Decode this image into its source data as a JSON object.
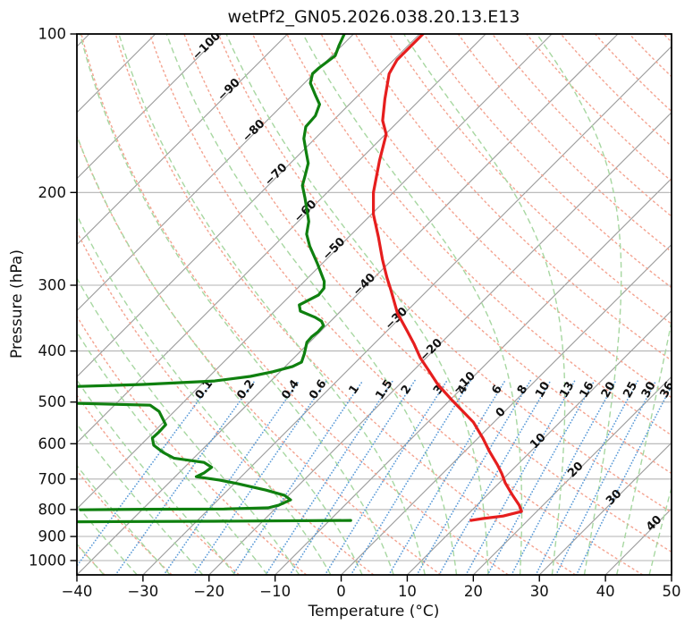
{
  "title": "wetPf2_GN05.2026.038.20.13.E13",
  "axes": {
    "xlabel": "Temperature (°C)",
    "ylabel": "Pressure (hPa)",
    "x_ticks": [
      -40,
      -30,
      -20,
      -10,
      0,
      10,
      20,
      30,
      40,
      50
    ],
    "y_ticks": [
      100,
      200,
      300,
      400,
      500,
      600,
      700,
      800,
      900,
      1000
    ],
    "x_range_c": [
      -40,
      50
    ],
    "p_top_hpa": 100,
    "p_bottom_hpa": 1064
  },
  "colors": {
    "temperature_line": "#e61e1e",
    "dewpoint_line": "#0f800f",
    "isotherm": "#9e9e9e",
    "pressure_grid": "#b3b3b3",
    "dry_adiabat": "#f4a390",
    "moist_adiabat": "#a7d7a1",
    "mixing_line": "#5b9bd8",
    "label_negative": "#2273c8",
    "label_zero": "#8a8a8a",
    "label_positive": "#c94040",
    "spine": "#000000",
    "text": "#111111"
  },
  "chart_data": {
    "type": "line",
    "variant": "skew-t-log-p",
    "title": "wetPf2_GN05.2026.038.20.13.E13",
    "xlabel": "Temperature (°C)",
    "ylabel": "Pressure (hPa)",
    "x_range_c": [
      -40,
      50
    ],
    "p_range_hpa": [
      100,
      1064
    ],
    "skew": "45deg-isotherms",
    "grid": true,
    "isotherm_step_c": 10,
    "isotherm_labels": [
      [
        -100,
        53
      ],
      [
        -90,
        102
      ],
      [
        -80,
        148
      ],
      [
        -70,
        197
      ],
      [
        -60,
        238
      ],
      [
        -50,
        280
      ],
      [
        -40,
        320
      ],
      [
        -30,
        358
      ],
      [
        -20,
        393
      ],
      [
        -10,
        430
      ],
      [
        0,
        463
      ],
      [
        10,
        495
      ],
      [
        20,
        527
      ],
      [
        30,
        558
      ],
      [
        40,
        587
      ]
    ],
    "dry_adiabats_theta_c": {
      "start": -40,
      "end": 200,
      "step": 10
    },
    "moist_adiabats_t0_c": {
      "start": -40,
      "end": 45,
      "step": 5
    },
    "mixing_ratio_g_kg": [
      0.1,
      0.2,
      0.4,
      0.6,
      1,
      1.5,
      2,
      3,
      4,
      6,
      8,
      10,
      13,
      16,
      20,
      25,
      30,
      36
    ],
    "mixing_line_top_hpa": 455,
    "mixing_label_hpa": 476,
    "series": [
      {
        "name": "temperature",
        "color": "#e61e1e",
        "points_p_t": [
          [
            100,
            -69.5
          ],
          [
            112,
            -69.5
          ],
          [
            119,
            -68.6
          ],
          [
            133,
            -65.4
          ],
          [
            146,
            -62.5
          ],
          [
            155,
            -59.9
          ],
          [
            174,
            -56.9
          ],
          [
            200,
            -53.0
          ],
          [
            220,
            -49.7
          ],
          [
            243,
            -45.5
          ],
          [
            268,
            -41.5
          ],
          [
            290,
            -38.1
          ],
          [
            307,
            -35.5
          ],
          [
            339,
            -31.1
          ],
          [
            366,
            -27.0
          ],
          [
            388,
            -23.9
          ],
          [
            412,
            -20.9
          ],
          [
            437,
            -17.5
          ],
          [
            463,
            -14.2
          ],
          [
            495,
            -9.8
          ],
          [
            521,
            -6.3
          ],
          [
            546,
            -3.1
          ],
          [
            585,
            0.7
          ],
          [
            621,
            3.8
          ],
          [
            658,
            7.0
          ],
          [
            684,
            9.0
          ],
          [
            712,
            10.9
          ],
          [
            749,
            13.7
          ],
          [
            785,
            16.4
          ],
          [
            807,
            17.7
          ],
          [
            823,
            15.6
          ],
          [
            832,
            12.9
          ],
          [
            839,
            11.4
          ]
        ]
      },
      {
        "name": "dewpoint",
        "color": "#0f800f",
        "segments_p_t": [
          [
            [
              100,
              -81.4
            ],
            [
              105,
              -80.5
            ],
            [
              110,
              -79.5
            ],
            [
              116,
              -80.1
            ],
            [
              119,
              -80.2
            ],
            [
              124,
              -79.1
            ],
            [
              131,
              -76.4
            ],
            [
              136,
              -74.5
            ],
            [
              143,
              -73.4
            ],
            [
              150,
              -73.2
            ],
            [
              158,
              -71.7
            ],
            [
              168,
              -69.2
            ],
            [
              176,
              -67.3
            ],
            [
              185,
              -66.0
            ],
            [
              194,
              -64.8
            ],
            [
              205,
              -62.5
            ],
            [
              216,
              -60.4
            ],
            [
              227,
              -58.4
            ],
            [
              240,
              -56.8
            ],
            [
              253,
              -54.5
            ],
            [
              273,
              -50.7
            ],
            [
              295,
              -47.0
            ],
            [
              304,
              -46.0
            ],
            [
              313,
              -45.8
            ],
            [
              327,
              -47.2
            ],
            [
              336,
              -46.1
            ],
            [
              345,
              -43.0
            ],
            [
              351,
              -41.4
            ],
            [
              358,
              -40.4
            ],
            [
              368,
              -40.3
            ],
            [
              376,
              -40.5
            ],
            [
              385,
              -40.4
            ],
            [
              404,
              -39.1
            ],
            [
              420,
              -38.2
            ],
            [
              428,
              -38.9
            ],
            [
              438,
              -41.1
            ],
            [
              447,
              -43.8
            ],
            [
              456,
              -48.5
            ],
            [
              463,
              -58.8
            ],
            [
              467,
              -68.3
            ]
          ],
          [
            [
              503,
              -65.7
            ],
            [
              507,
              -54.6
            ],
            [
              521,
              -52.3
            ],
            [
              552,
              -49.3
            ],
            [
              570,
              -49.2
            ],
            [
              585,
              -49.3
            ],
            [
              604,
              -48.0
            ],
            [
              623,
              -45.5
            ],
            [
              639,
              -43.0
            ],
            [
              651,
              -37.8
            ],
            [
              665,
              -35.9
            ],
            [
              682,
              -36.2
            ],
            [
              693,
              -36.8
            ],
            [
              703,
              -32.8
            ],
            [
              714,
              -29.6
            ],
            [
              735,
              -24.2
            ],
            [
              752,
              -20.6
            ],
            [
              767,
              -19.0
            ],
            [
              785,
              -20.0
            ],
            [
              794,
              -21.2
            ],
            [
              798,
              -27.7
            ],
            [
              799,
              -39.7
            ],
            [
              801,
              -49.3
            ]
          ],
          [
            [
              844,
              -47.8
            ],
            [
              842,
              -27.3
            ],
            [
              839,
              -6.8
            ]
          ]
        ]
      }
    ],
    "legend": null
  }
}
